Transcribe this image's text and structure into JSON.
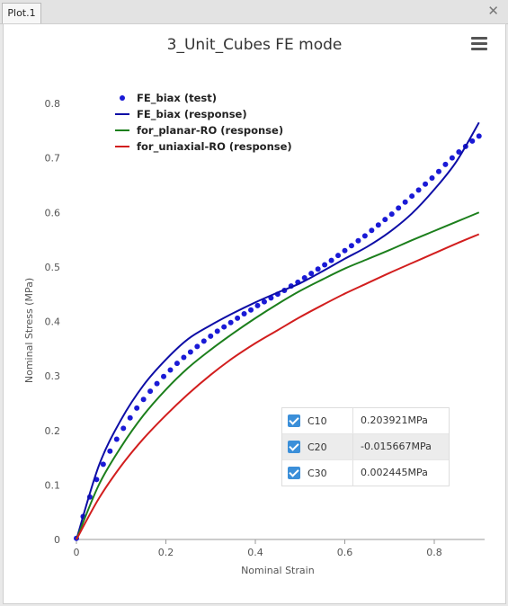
{
  "window": {
    "tab_label": "Plot.1"
  },
  "chart_data": {
    "type": "line",
    "title": "3_Unit_Cubes FE mode",
    "xlabel": "Nominal Strain",
    "ylabel": "Nominal Stress (MPa)",
    "xlim": [
      0,
      0.92
    ],
    "ylim": [
      0,
      0.8
    ],
    "xticks": [
      "0",
      "0.2",
      "0.4",
      "0.6",
      "0.8"
    ],
    "yticks": [
      "0",
      "0.1",
      "0.2",
      "0.3",
      "0.4",
      "0.5",
      "0.6",
      "0.7",
      "0.8"
    ],
    "grid": false,
    "legend_position": "top-left",
    "series": [
      {
        "name": "FE_biax (test)",
        "style": "points",
        "color": "#1a1ad6",
        "x": [
          0,
          0.015,
          0.03,
          0.045,
          0.06,
          0.075,
          0.09,
          0.105,
          0.12,
          0.135,
          0.15,
          0.165,
          0.18,
          0.195,
          0.21,
          0.225,
          0.24,
          0.255,
          0.27,
          0.285,
          0.3,
          0.315,
          0.33,
          0.345,
          0.36,
          0.375,
          0.39,
          0.405,
          0.42,
          0.435,
          0.45,
          0.465,
          0.48,
          0.495,
          0.51,
          0.525,
          0.54,
          0.555,
          0.57,
          0.585,
          0.6,
          0.615,
          0.63,
          0.645,
          0.66,
          0.675,
          0.69,
          0.705,
          0.72,
          0.735,
          0.75,
          0.765,
          0.78,
          0.795,
          0.81,
          0.825,
          0.84,
          0.855,
          0.87,
          0.885,
          0.9
        ],
        "y": [
          0.002,
          0.042,
          0.078,
          0.11,
          0.138,
          0.162,
          0.184,
          0.204,
          0.223,
          0.241,
          0.257,
          0.272,
          0.286,
          0.299,
          0.311,
          0.323,
          0.334,
          0.344,
          0.354,
          0.364,
          0.373,
          0.382,
          0.39,
          0.398,
          0.406,
          0.414,
          0.421,
          0.429,
          0.436,
          0.443,
          0.45,
          0.457,
          0.465,
          0.472,
          0.48,
          0.488,
          0.496,
          0.504,
          0.512,
          0.521,
          0.53,
          0.539,
          0.548,
          0.557,
          0.567,
          0.577,
          0.587,
          0.597,
          0.608,
          0.619,
          0.63,
          0.641,
          0.652,
          0.663,
          0.675,
          0.688,
          0.7,
          0.711,
          0.721,
          0.731,
          0.74
        ]
      },
      {
        "name": "FE_biax (response)",
        "style": "line",
        "color": "#0d0da6",
        "x": [
          0,
          0.05,
          0.1,
          0.15,
          0.2,
          0.25,
          0.3,
          0.35,
          0.4,
          0.45,
          0.5,
          0.55,
          0.6,
          0.65,
          0.7,
          0.75,
          0.8,
          0.85,
          0.9
        ],
        "y": [
          0,
          0.135,
          0.22,
          0.283,
          0.33,
          0.368,
          0.393,
          0.415,
          0.435,
          0.453,
          0.47,
          0.492,
          0.515,
          0.537,
          0.564,
          0.598,
          0.642,
          0.694,
          0.765
        ]
      },
      {
        "name": "for_planar-RO (response)",
        "style": "line",
        "color": "#1c7f1c",
        "x": [
          0,
          0.05,
          0.1,
          0.15,
          0.2,
          0.25,
          0.3,
          0.35,
          0.4,
          0.45,
          0.5,
          0.55,
          0.6,
          0.65,
          0.7,
          0.75,
          0.8,
          0.85,
          0.9
        ],
        "y": [
          0,
          0.1,
          0.17,
          0.228,
          0.275,
          0.315,
          0.348,
          0.378,
          0.406,
          0.432,
          0.456,
          0.477,
          0.497,
          0.514,
          0.531,
          0.549,
          0.566,
          0.583,
          0.6
        ]
      },
      {
        "name": "for_uniaxial-RO (response)",
        "style": "line",
        "color": "#d21e1e",
        "x": [
          0,
          0.05,
          0.1,
          0.15,
          0.2,
          0.25,
          0.3,
          0.35,
          0.4,
          0.45,
          0.5,
          0.55,
          0.6,
          0.65,
          0.7,
          0.75,
          0.8,
          0.85,
          0.9
        ],
        "y": [
          0,
          0.075,
          0.135,
          0.185,
          0.228,
          0.267,
          0.302,
          0.333,
          0.36,
          0.384,
          0.408,
          0.43,
          0.451,
          0.47,
          0.489,
          0.507,
          0.525,
          0.543,
          0.56
        ]
      }
    ]
  },
  "parameters": [
    {
      "name": "C10",
      "value": "0.203921MPa",
      "checked": true
    },
    {
      "name": "C20",
      "value": "-0.015667MPa",
      "checked": true
    },
    {
      "name": "C30",
      "value": "0.002445MPa",
      "checked": true
    }
  ]
}
